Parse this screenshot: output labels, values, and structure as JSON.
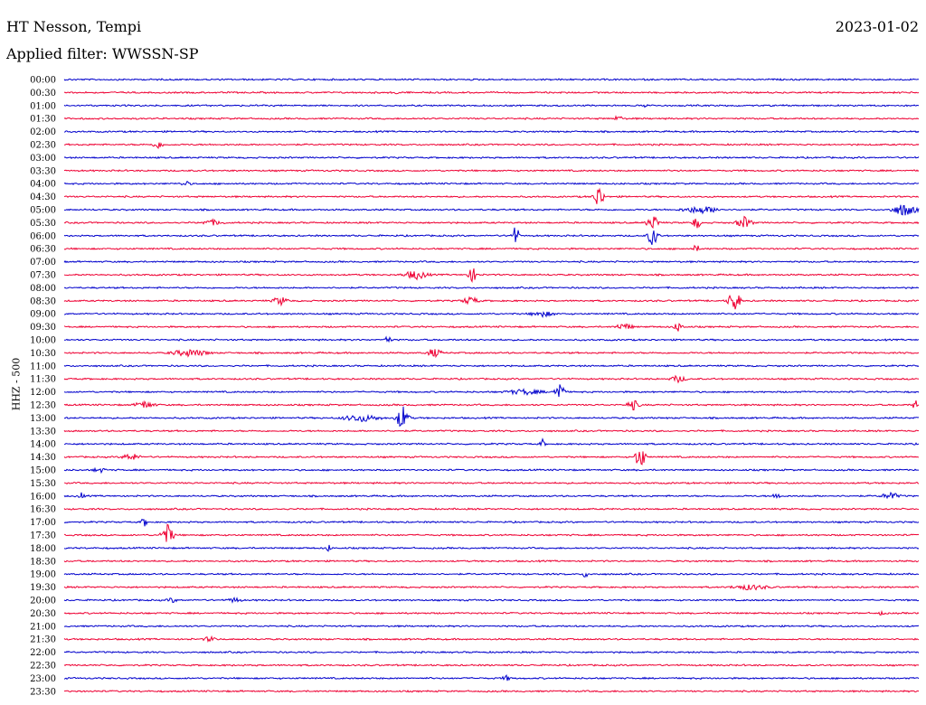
{
  "header": {
    "station": "HT Nesson, Tempi",
    "filter": "Applied filter: WWSSN-SP",
    "date": "2023-01-02"
  },
  "channel_label": "HHZ - 500",
  "colors": {
    "even_hour": "#0000cc",
    "half_hour": "#ee0033"
  },
  "rows": [
    "00:00",
    "00:30",
    "01:00",
    "01:30",
    "02:00",
    "02:30",
    "03:00",
    "03:30",
    "04:00",
    "04:30",
    "05:00",
    "05:30",
    "06:00",
    "06:30",
    "07:00",
    "07:30",
    "08:00",
    "08:30",
    "09:00",
    "09:30",
    "10:00",
    "10:30",
    "11:00",
    "11:30",
    "12:00",
    "12:30",
    "13:00",
    "13:30",
    "14:00",
    "14:30",
    "15:00",
    "15:30",
    "16:00",
    "16:30",
    "17:00",
    "17:30",
    "18:00",
    "18:30",
    "19:00",
    "19:30",
    "20:00",
    "20:30",
    "21:00",
    "21:30",
    "22:00",
    "22:30",
    "23:00",
    "23:30"
  ]
}
